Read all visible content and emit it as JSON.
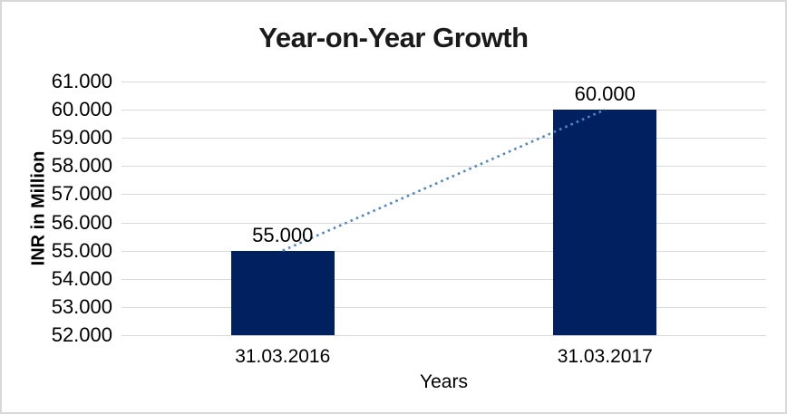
{
  "chart_data": {
    "type": "bar",
    "title": "Year-on-Year Growth",
    "xlabel": "Years",
    "ylabel": "INR in Million",
    "categories": [
      "31.03.2016",
      "31.03.2017"
    ],
    "values": [
      55000,
      60000
    ],
    "value_labels": [
      "55.000",
      "60.000"
    ],
    "ylim": [
      52000,
      61000
    ],
    "yticks": [
      {
        "value": 61000,
        "label": "61.000"
      },
      {
        "value": 60000,
        "label": "60.000"
      },
      {
        "value": 59000,
        "label": "59.000"
      },
      {
        "value": 58000,
        "label": "58.000"
      },
      {
        "value": 57000,
        "label": "57.000"
      },
      {
        "value": 56000,
        "label": "56.000"
      },
      {
        "value": 55000,
        "label": "55.000"
      },
      {
        "value": 54000,
        "label": "54.000"
      },
      {
        "value": 53000,
        "label": "53.000"
      },
      {
        "value": 52000,
        "label": "52.000"
      }
    ],
    "grid": true,
    "legend": "none",
    "trendline": {
      "style": "dotted",
      "from_value": 55000,
      "to_value": 60000
    },
    "colors": {
      "bar": "#002060",
      "trendline": "#4e86c8",
      "gridline": "#d9d9d9",
      "text": "#000000",
      "title_text": "#1a1a1a",
      "border": "#d8d8d8",
      "background": "#ffffff"
    }
  }
}
